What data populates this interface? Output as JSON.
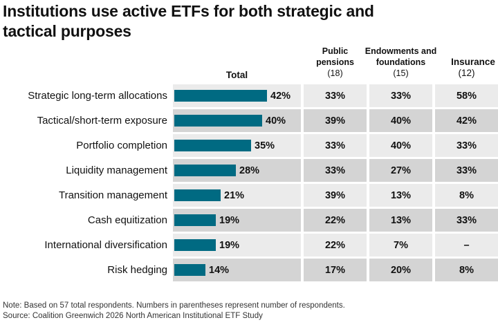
{
  "title": "Institutions use active ETFs for both strategic and tactical purposes",
  "colors": {
    "bar": "#006a82",
    "row_light": "#ebebeb",
    "row_dark": "#d4d4d4",
    "text": "#111111"
  },
  "chart_data": {
    "type": "bar",
    "title": "Institutions use active ETFs for both strategic and tactical purposes",
    "categories": [
      "Strategic long-term allocations",
      "Tactical/short-term exposure",
      "Portfolio completion",
      "Liquidity management",
      "Transition management",
      "Cash equitization",
      "International diversification",
      "Risk hedging"
    ],
    "total": {
      "header": "Total",
      "values": [
        42,
        40,
        35,
        28,
        21,
        19,
        19,
        14
      ],
      "labels": [
        "42%",
        "40%",
        "35%",
        "28%",
        "21%",
        "19%",
        "19%",
        "14%"
      ]
    },
    "columns": [
      {
        "header": "Public pensions",
        "count": "(18)",
        "values": [
          "33%",
          "39%",
          "33%",
          "33%",
          "39%",
          "22%",
          "22%",
          "17%"
        ]
      },
      {
        "header": "Endowments and foundations",
        "count": "(15)",
        "values": [
          "33%",
          "40%",
          "40%",
          "27%",
          "13%",
          "13%",
          "7%",
          "20%"
        ]
      },
      {
        "header": "Insurance",
        "count": "(12)",
        "values": [
          "58%",
          "42%",
          "33%",
          "33%",
          "8%",
          "33%",
          "–",
          "8%"
        ]
      }
    ],
    "xlim": [
      0,
      100
    ]
  },
  "footer": {
    "note": "Note: Based on 57 total respondents. Numbers in parentheses represent number of respondents.",
    "source": "Source: Coalition Greenwich 2026 North American Institutional ETF Study"
  }
}
